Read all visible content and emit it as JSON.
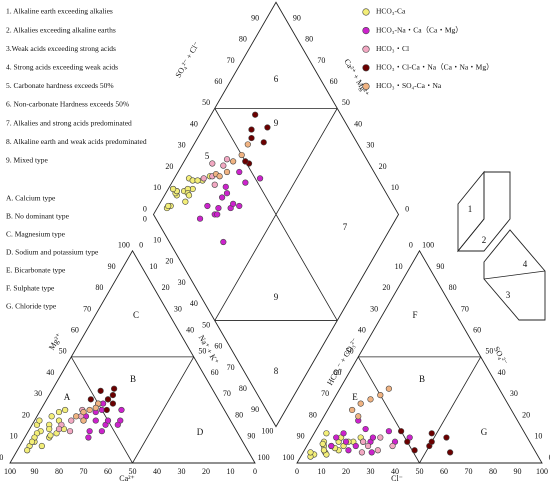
{
  "chart_data": {
    "type": "piper",
    "region_key": [
      "1. Alkaline earth exceeding alkalies",
      "2. Alkalies exceeding alkaline earths",
      "3.Weak acids exceeding strong acids",
      "4. Strong acids exceeding weak acids",
      "5. Carbonate hardness exceeds 50%",
      "6. Non-carbonate Hardness exceeds 50%",
      "7. Alkalies and strong acids predominated",
      "8. Alkaline earth and weak acids predominated",
      "9. Mixed type"
    ],
    "type_key": [
      "A. Calcium type",
      "B. No dominant type",
      "C. Magnesium type",
      "D. Sodium and potassium type",
      "E. Bicarbonate type",
      "F. Sulphate type",
      "G. Chloride type"
    ],
    "axis_labels": {
      "ca": "Ca²⁺",
      "cl": "Cl⁻",
      "mg": "Mg²⁺",
      "na": "Na⁺ + K⁺",
      "hco3": "HCO₃⁻ + CO₃²⁻",
      "so4": "SO₄²⁻",
      "so4cl": "SO₄²⁻ + Cl⁻",
      "camg": "Ca²⁺ + Mg²⁺"
    },
    "cation_regions": [
      "A",
      "B",
      "C",
      "D"
    ],
    "anion_regions": [
      "E",
      "B",
      "F",
      "G"
    ],
    "diamond_regions": [
      "5",
      "6",
      "7",
      "8",
      "9",
      "9"
    ],
    "inset_regions": [
      "1",
      "2",
      "3",
      "4"
    ],
    "ticks": [
      0,
      10,
      20,
      30,
      40,
      50,
      60,
      70,
      80,
      90,
      100
    ],
    "series": [
      {
        "name": "HCO₃-Ca",
        "color": "#f3ee78",
        "values": [
          [
            80,
            15,
            8,
            6
          ],
          [
            85,
            10,
            5,
            4
          ],
          [
            75,
            18,
            10,
            8
          ],
          [
            88,
            8,
            4,
            3
          ],
          [
            70,
            20,
            12,
            10
          ],
          [
            78,
            12,
            6,
            10
          ],
          [
            82,
            14,
            9,
            5
          ],
          [
            72,
            22,
            15,
            8
          ],
          [
            90,
            6,
            3,
            5
          ],
          [
            76,
            16,
            12,
            12
          ],
          [
            68,
            24,
            14,
            6
          ],
          [
            84,
            12,
            7,
            8
          ],
          [
            74,
            14,
            18,
            10
          ],
          [
            80,
            18,
            10,
            4
          ],
          [
            86,
            10,
            6,
            9
          ],
          [
            70,
            16,
            20,
            12
          ],
          [
            78,
            20,
            8,
            6
          ],
          [
            65,
            25,
            16,
            10
          ],
          [
            83,
            8,
            12,
            7
          ],
          [
            77,
            13,
            5,
            14
          ]
        ]
      },
      {
        "name": "HCO₃-Na・Ca（Ca・Mg）",
        "color": "#cc22cc",
        "values": [
          [
            55,
            20,
            15,
            10
          ],
          [
            50,
            25,
            20,
            8
          ],
          [
            60,
            15,
            25,
            10
          ],
          [
            45,
            20,
            10,
            12
          ],
          [
            52,
            18,
            30,
            15
          ],
          [
            58,
            22,
            18,
            6
          ],
          [
            48,
            28,
            22,
            10
          ],
          [
            62,
            12,
            12,
            14
          ],
          [
            45,
            30,
            35,
            10
          ],
          [
            55,
            15,
            28,
            5
          ],
          [
            50,
            20,
            15,
            20
          ],
          [
            42,
            25,
            25,
            12
          ],
          [
            60,
            20,
            10,
            8
          ],
          [
            53,
            24,
            20,
            16
          ],
          [
            47,
            18,
            40,
            12
          ]
        ]
      },
      {
        "name": "HCO₃・Cl",
        "color": "#f2a8c2",
        "values": [
          [
            65,
            20,
            25,
            8
          ],
          [
            70,
            18,
            30,
            6
          ],
          [
            60,
            22,
            22,
            10
          ],
          [
            68,
            15,
            35,
            8
          ],
          [
            58,
            25,
            28,
            12
          ],
          [
            72,
            16,
            24,
            5
          ]
        ]
      },
      {
        "name": "HCO₃・Cl-Ca・Na（Ca・Na・Mg）",
        "color": "#6b0000",
        "values": [
          [
            45,
            30,
            40,
            10
          ],
          [
            50,
            28,
            50,
            8
          ],
          [
            42,
            32,
            55,
            12
          ],
          [
            48,
            25,
            45,
            6
          ],
          [
            40,
            35,
            35,
            15
          ],
          [
            52,
            30,
            60,
            5
          ],
          [
            46,
            34,
            50,
            10
          ],
          [
            44,
            28,
            48,
            14
          ]
        ]
      },
      {
        "name": "HCO₃・SO₄-Ca・Na",
        "color": "#f0b382",
        "values": [
          [
            55,
            25,
            15,
            30
          ],
          [
            60,
            20,
            12,
            28
          ],
          [
            50,
            28,
            18,
            32
          ],
          [
            62,
            22,
            10,
            25
          ],
          [
            52,
            26,
            20,
            35
          ],
          [
            58,
            24,
            14,
            22
          ]
        ]
      }
    ]
  }
}
